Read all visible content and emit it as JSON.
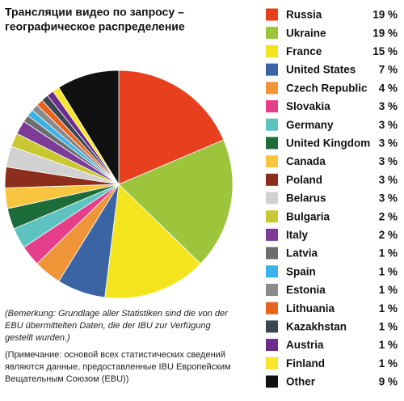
{
  "chart_data": {
    "type": "pie",
    "title_lines": [
      "Трансляции видео по запросу –",
      "географическое распределение"
    ],
    "categories": [
      "Russia",
      "Ukraine",
      "France",
      "United States",
      "Czech Republic",
      "Slovakia",
      "Germany",
      "United Kingdom",
      "Canada",
      "Poland",
      "Belarus",
      "Bulgaria",
      "Italy",
      "Latvia",
      "Spain",
      "Estonia",
      "Lithuania",
      "Kazakhstan",
      "Austria",
      "Finland",
      "Other"
    ],
    "values": [
      19,
      19,
      15,
      7,
      4,
      3,
      3,
      3,
      3,
      3,
      3,
      2,
      2,
      1,
      1,
      1,
      1,
      1,
      1,
      1,
      9
    ],
    "value_labels": [
      "19 %",
      "19 %",
      "15 %",
      "7 %",
      "4 %",
      "3 %",
      "3 %",
      "3 %",
      "3 %",
      "3 %",
      "3 %",
      "2 %",
      "2 %",
      "1 %",
      "1 %",
      "1 %",
      "1 %",
      "1 %",
      "1 %",
      "1 %",
      "9 %"
    ],
    "colors": [
      "#e8401f",
      "#9cc53b",
      "#f3e41d",
      "#3a64a4",
      "#f09438",
      "#e53e8b",
      "#5cc3c0",
      "#1d6d3b",
      "#f7c63e",
      "#8d2d1c",
      "#d1d1d1",
      "#c9c832",
      "#7b3b97",
      "#6d6d6d",
      "#3bb3e6",
      "#8b8b8b",
      "#e6641f",
      "#3a4651",
      "#6b2c8b",
      "#f8e529",
      "#111111"
    ],
    "notes": [
      "(Bemerkung: Grundlage aller Statistiken sind die von der EBU übermittelten Daten, die der IBU zur Verfügung gestellt wurden.)",
      "(Примечание: основой всех статистических сведений являются данные, предоставленные IBU Европейским Вещательным Союзом (EBU))"
    ]
  }
}
